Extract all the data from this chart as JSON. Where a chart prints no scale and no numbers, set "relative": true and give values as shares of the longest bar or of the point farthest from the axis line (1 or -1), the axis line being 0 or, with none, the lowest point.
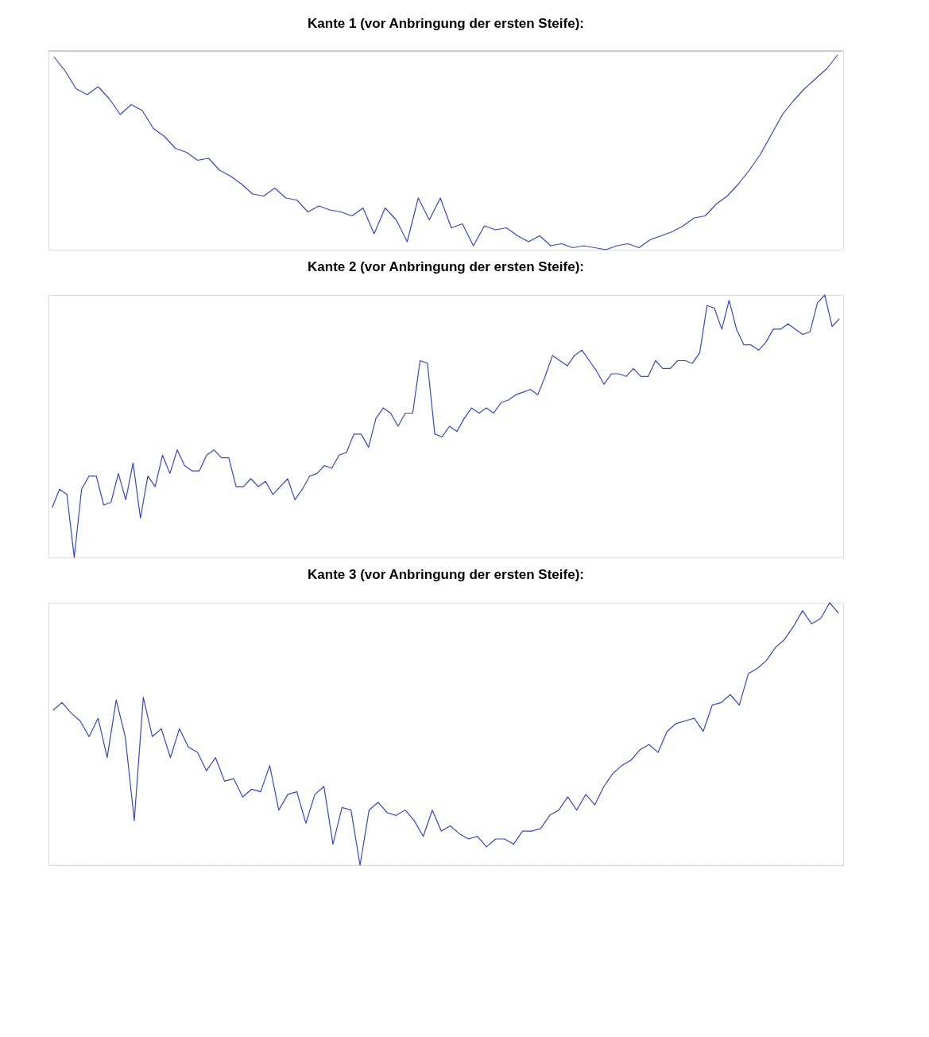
{
  "chart_data": [
    {
      "type": "line",
      "title": "Kante 1 (vor Anbringung der ersten Steife):",
      "relative": true,
      "marker": "none",
      "line_style": "solid",
      "categories": [
        null,
        null,
        null,
        null,
        null,
        null,
        null,
        null,
        null,
        null,
        null,
        null,
        null,
        null,
        null,
        null,
        null,
        null,
        null,
        null,
        null,
        null,
        null,
        null,
        null,
        null,
        null,
        null,
        null,
        null,
        null,
        null,
        null,
        null,
        null,
        null,
        null,
        null,
        null,
        null,
        null,
        null,
        null,
        null,
        null,
        null,
        null,
        null,
        null,
        null,
        null,
        null,
        null,
        null,
        null,
        null,
        null,
        null,
        null,
        null,
        null,
        null,
        null,
        null,
        null,
        null,
        null,
        null,
        null,
        null,
        null,
        null
      ],
      "series": [
        {
          "color": "#3344dd",
          "values": [
            -0.03,
            -0.1,
            -0.19,
            -0.22,
            -0.18,
            -0.24,
            -0.32,
            -0.27,
            -0.3,
            -0.39,
            -0.43,
            -0.49,
            -0.51,
            -0.55,
            -0.54,
            -0.6,
            -0.63,
            -0.67,
            -0.72,
            -0.73,
            -0.69,
            -0.74,
            -0.75,
            -0.81,
            -0.78,
            -0.8,
            -0.81,
            -0.83,
            -0.79,
            -0.92,
            -0.79,
            -0.85,
            -0.96,
            -0.74,
            -0.85,
            -0.74,
            -0.89,
            -0.87,
            -0.98,
            -0.88,
            -0.9,
            -0.89,
            -0.93,
            -0.96,
            -0.93,
            -0.98,
            -0.97,
            -0.99,
            -0.98,
            -0.99,
            -1,
            -0.98,
            -0.97,
            -0.99,
            -0.95,
            -0.93,
            -0.91,
            -0.88,
            -0.84,
            -0.83,
            -0.77,
            -0.73,
            -0.67,
            -0.6,
            -0.52,
            -0.42,
            -0.32,
            -0.25,
            -0.19,
            -0.14,
            -0.09,
            -0.02
          ]
        }
      ],
      "ref_lines": [
        {
          "axis": "y",
          "value": 0,
          "color": "#aaaaaa",
          "line_style": "solid"
        }
      ]
    },
    {
      "type": "line",
      "title": "Kante 2 (vor Anbringung der ersten Steife):",
      "relative": true,
      "marker": "none",
      "line_style": "solid",
      "categories": [
        null,
        null,
        null,
        null,
        null,
        null,
        null,
        null,
        null,
        null,
        null,
        null,
        null,
        null,
        null,
        null,
        null,
        null,
        null,
        null,
        null,
        null,
        null,
        null,
        null,
        null,
        null,
        null,
        null,
        null,
        null,
        null,
        null,
        null,
        null,
        null,
        null,
        null,
        null,
        null,
        null,
        null,
        null,
        null,
        null,
        null,
        null,
        null,
        null,
        null,
        null,
        null,
        null,
        null,
        null,
        null,
        null,
        null,
        null,
        null,
        null,
        null,
        null,
        null,
        null,
        null,
        null,
        null,
        null,
        null,
        null,
        null,
        null,
        null,
        null,
        null,
        null,
        null,
        null,
        null,
        null,
        null,
        null,
        null,
        null,
        null,
        null,
        null,
        null,
        null,
        null,
        null,
        null,
        null,
        null,
        null,
        null,
        null,
        null,
        null,
        null,
        null,
        null,
        null,
        null,
        null,
        null,
        null
      ],
      "series": [
        {
          "color": "#3344dd",
          "values": [
            0.19,
            0.26,
            0.24,
            0,
            0.26,
            0.31,
            0.31,
            0.2,
            0.21,
            0.32,
            0.22,
            0.36,
            0.15,
            0.31,
            0.27,
            0.39,
            0.32,
            0.41,
            0.35,
            0.33,
            0.33,
            0.39,
            0.41,
            0.38,
            0.38,
            0.27,
            0.27,
            0.3,
            0.27,
            0.29,
            0.24,
            0.27,
            0.3,
            0.22,
            0.26,
            0.31,
            0.32,
            0.35,
            0.34,
            0.39,
            0.4,
            0.47,
            0.47,
            0.42,
            0.53,
            0.57,
            0.55,
            0.5,
            0.55,
            0.55,
            0.75,
            0.74,
            0.47,
            0.46,
            0.5,
            0.48,
            0.53,
            0.57,
            0.55,
            0.57,
            0.55,
            0.59,
            0.6,
            0.62,
            0.63,
            0.64,
            0.62,
            0.69,
            0.77,
            0.75,
            0.73,
            0.77,
            0.79,
            0.75,
            0.71,
            0.66,
            0.7,
            0.7,
            0.69,
            0.72,
            0.69,
            0.69,
            0.75,
            0.72,
            0.72,
            0.75,
            0.75,
            0.74,
            0.78,
            0.96,
            0.95,
            0.87,
            0.98,
            0.87,
            0.81,
            0.81,
            0.79,
            0.82,
            0.87,
            0.87,
            0.89,
            0.87,
            0.85,
            0.86,
            0.97,
            1,
            0.88,
            0.91
          ]
        }
      ]
    },
    {
      "type": "line",
      "title": "Kante 3 (vor Anbringung der ersten Steife):",
      "relative": true,
      "marker": "none",
      "line_style": "solid",
      "categories": [
        null,
        null,
        null,
        null,
        null,
        null,
        null,
        null,
        null,
        null,
        null,
        null,
        null,
        null,
        null,
        null,
        null,
        null,
        null,
        null,
        null,
        null,
        null,
        null,
        null,
        null,
        null,
        null,
        null,
        null,
        null,
        null,
        null,
        null,
        null,
        null,
        null,
        null,
        null,
        null,
        null,
        null,
        null,
        null,
        null,
        null,
        null,
        null,
        null,
        null,
        null,
        null,
        null,
        null,
        null,
        null,
        null,
        null,
        null,
        null,
        null,
        null,
        null,
        null,
        null,
        null,
        null,
        null,
        null,
        null,
        null,
        null,
        null,
        null,
        null,
        null,
        null,
        null,
        null,
        null,
        null,
        null,
        null,
        null,
        null,
        null,
        null,
        null
      ],
      "series": [
        {
          "color": "#3344dd",
          "values": [
            0.59,
            0.62,
            0.58,
            0.55,
            0.49,
            0.56,
            0.41,
            0.63,
            0.49,
            0.17,
            0.64,
            0.49,
            0.52,
            0.41,
            0.52,
            0.45,
            0.43,
            0.36,
            0.41,
            0.32,
            0.33,
            0.26,
            0.29,
            0.28,
            0.38,
            0.21,
            0.27,
            0.28,
            0.16,
            0.27,
            0.3,
            0.08,
            0.22,
            0.21,
            0,
            0.21,
            0.24,
            0.2,
            0.19,
            0.21,
            0.17,
            0.11,
            0.21,
            0.13,
            0.15,
            0.12,
            0.1,
            0.11,
            0.07,
            0.1,
            0.1,
            0.08,
            0.13,
            0.13,
            0.14,
            0.19,
            0.21,
            0.26,
            0.21,
            0.27,
            0.23,
            0.3,
            0.35,
            0.38,
            0.4,
            0.44,
            0.46,
            0.43,
            0.51,
            0.54,
            0.55,
            0.56,
            0.51,
            0.61,
            0.62,
            0.65,
            0.61,
            0.73,
            0.75,
            0.78,
            0.83,
            0.86,
            0.91,
            0.97,
            0.92,
            0.94,
            1,
            0.96
          ]
        }
      ],
      "ref_lines": [
        {
          "axis": "y",
          "value": 0,
          "color": "#cccccc",
          "line_style": "dotted"
        }
      ]
    }
  ]
}
